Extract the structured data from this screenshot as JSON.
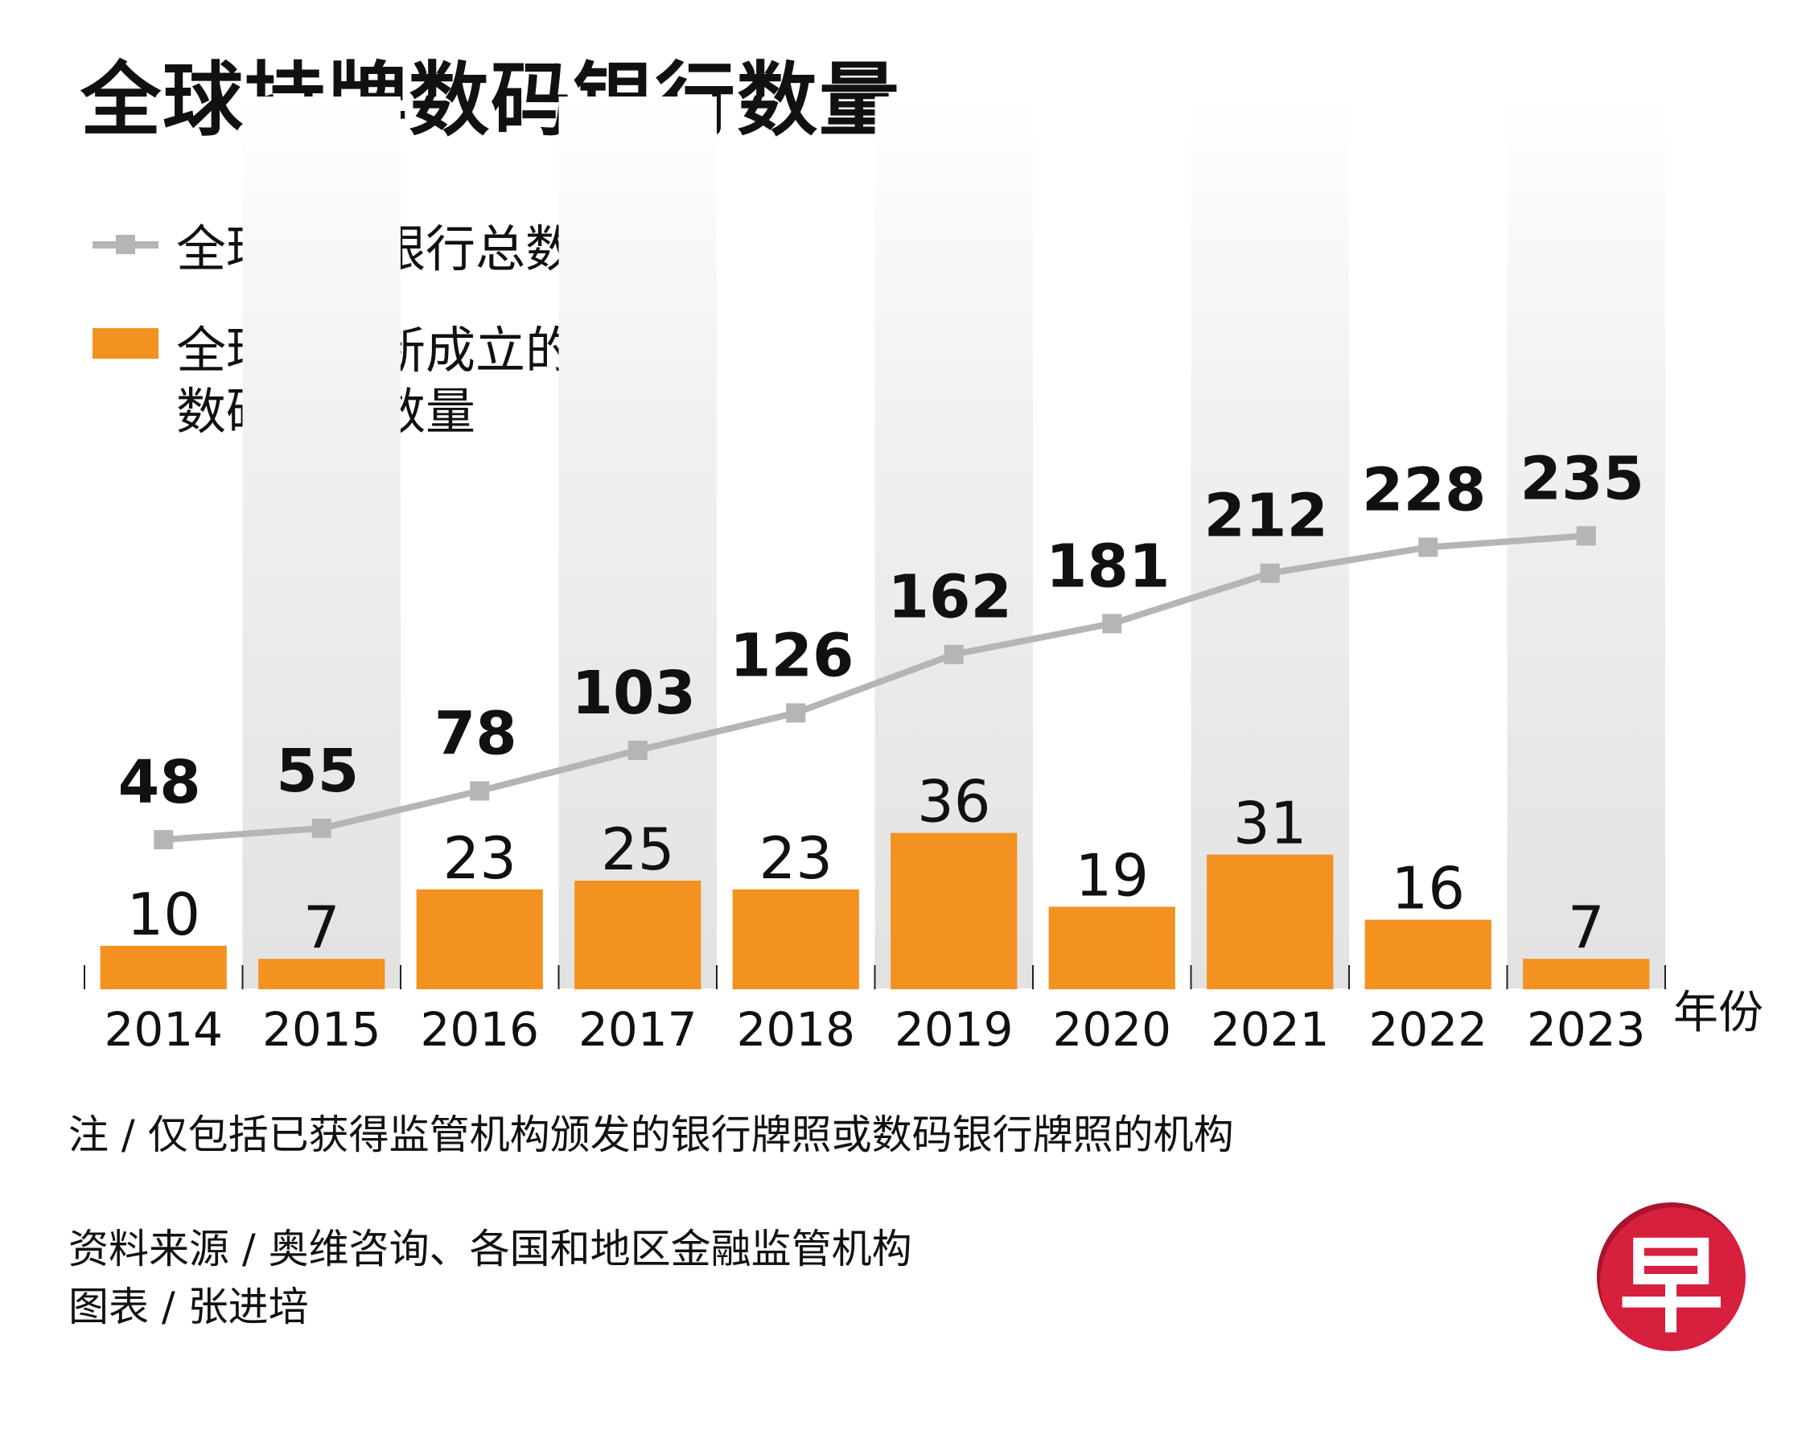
{
  "title": "全球持牌数码银行数量",
  "legend": {
    "line_label": "全球数码银行总数",
    "bar_label_line1": "全球每年新成立的",
    "bar_label_line2": "数码银行数量"
  },
  "colors": {
    "bar": "#f39121",
    "line": "#b5b5b5",
    "band": "#e3e3e3",
    "text": "#111111"
  },
  "chart_data": {
    "type": "bar",
    "title": "全球持牌数码银行数量",
    "xlabel": "年份",
    "ylabel": "",
    "categories": [
      "2014",
      "2015",
      "2016",
      "2017",
      "2018",
      "2019",
      "2020",
      "2021",
      "2022",
      "2023"
    ],
    "series": [
      {
        "name": "全球每年新成立的数码银行数量",
        "type": "bar",
        "values": [
          10,
          7,
          23,
          25,
          23,
          36,
          19,
          31,
          16,
          7
        ]
      },
      {
        "name": "全球数码银行总数",
        "type": "line",
        "values": [
          48,
          55,
          78,
          103,
          126,
          162,
          181,
          212,
          228,
          235
        ]
      }
    ],
    "legend_position": "top-left",
    "grid": false
  },
  "notes": {
    "note": "注 / 仅包括已获得监管机构颁发的银行牌照或数码银行牌照的机构",
    "source": "资料来源 / 奥维咨询、各国和地区金融监管机构",
    "credit": "图表 / 张进培"
  },
  "logo": {
    "char": "早",
    "icon": "zaobao-logo-icon"
  }
}
